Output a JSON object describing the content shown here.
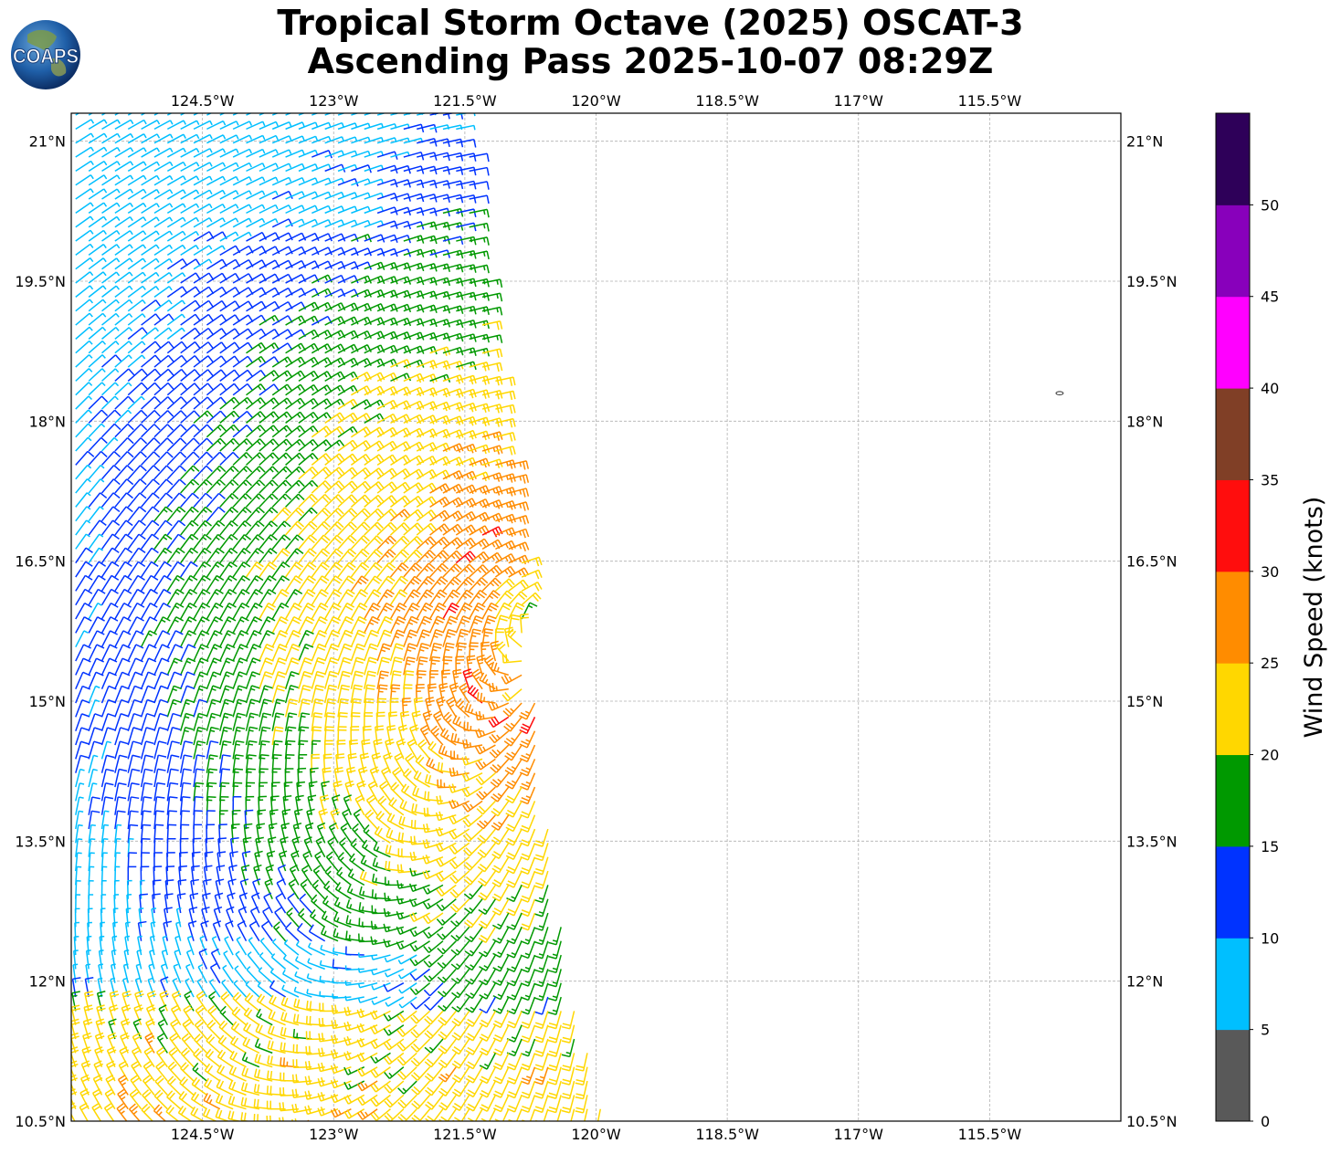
{
  "title": {
    "line1": "Tropical Storm Octave (2025) OSCAT-3",
    "line2": "Ascending Pass 2025-10-07 08:29Z"
  },
  "logo": {
    "text": "COAPS",
    "icon": "globe-logo-icon"
  },
  "map": {
    "lon_range": [
      -126.0,
      -114.0
    ],
    "lat_range": [
      10.5,
      21.3
    ],
    "lon_ticks": [
      "124.5°W",
      "123°W",
      "121.5°W",
      "120°W",
      "118.5°W",
      "117°W",
      "115.5°W"
    ],
    "lon_tick_values": [
      -124.5,
      -123.0,
      -121.5,
      -120.0,
      -118.5,
      -117.0,
      -115.5
    ],
    "lat_ticks": [
      "10.5°N",
      "12°N",
      "13.5°N",
      "15°N",
      "16.5°N",
      "18°N",
      "19.5°N",
      "21°N"
    ],
    "lat_tick_values": [
      10.5,
      12.0,
      13.5,
      15.0,
      16.5,
      18.0,
      19.5,
      21.0
    ],
    "grid": true,
    "storm_center": {
      "lon": -120.6,
      "lat": 15.9
    },
    "swath_east_edge": [
      {
        "lat": 21.3,
        "lon": -121.5
      },
      {
        "lat": 19.5,
        "lon": -121.3
      },
      {
        "lat": 17.0,
        "lon": -120.9
      },
      {
        "lat": 14.0,
        "lon": -120.6
      },
      {
        "lat": 12.0,
        "lon": -120.3
      },
      {
        "lat": 10.5,
        "lon": -119.9
      }
    ],
    "small_island": {
      "lon": -114.7,
      "lat": 18.3
    }
  },
  "colorbar": {
    "title": "Wind Speed (knots)",
    "labels": [
      "0",
      "5",
      "10",
      "15",
      "20",
      "25",
      "30",
      "35",
      "40",
      "45",
      "50"
    ],
    "bins": [
      {
        "min": 0,
        "max": 5,
        "color": "#595959"
      },
      {
        "min": 5,
        "max": 10,
        "color": "#00bfff"
      },
      {
        "min": 10,
        "max": 15,
        "color": "#0033ff"
      },
      {
        "min": 15,
        "max": 20,
        "color": "#009900"
      },
      {
        "min": 20,
        "max": 25,
        "color": "#ffd700"
      },
      {
        "min": 25,
        "max": 30,
        "color": "#ff8c00"
      },
      {
        "min": 30,
        "max": 35,
        "color": "#ff0d0d"
      },
      {
        "min": 35,
        "max": 40,
        "color": "#803f26"
      },
      {
        "min": 40,
        "max": 45,
        "color": "#ff00ff"
      },
      {
        "min": 45,
        "max": 50,
        "color": "#8800bb"
      },
      {
        "min": 50,
        "max": 55,
        "color": "#2e0059"
      }
    ]
  }
}
